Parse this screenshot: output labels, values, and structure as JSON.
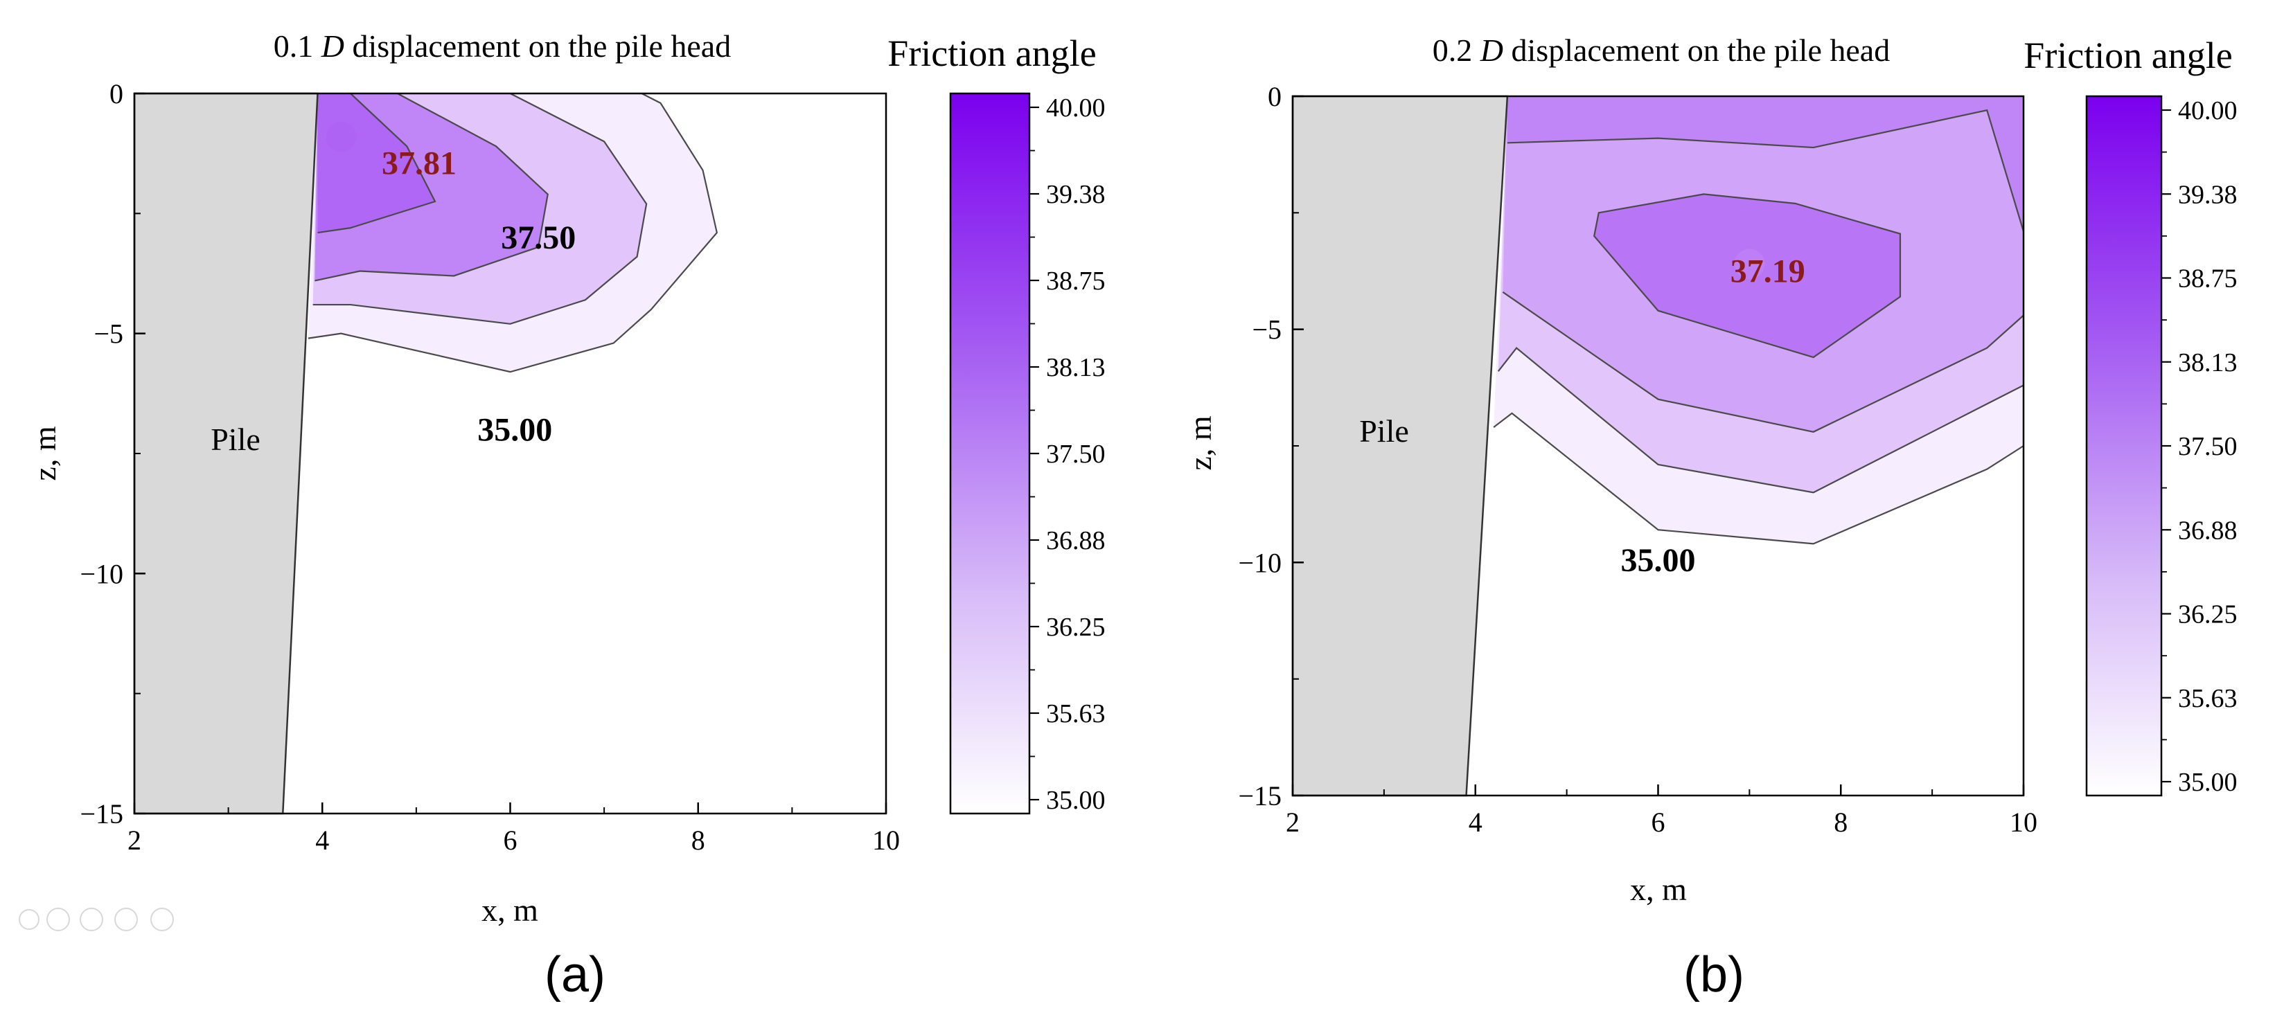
{
  "chart_data": [
    {
      "type": "heatmap",
      "panel": "(a)",
      "title_prefix": "0.1",
      "title_italic": "D",
      "title_suffix": "displacement on the pile head",
      "xlabel": "x, m",
      "ylabel": "z, m",
      "xlim": [
        2,
        10
      ],
      "ylim": [
        -15,
        0
      ],
      "xticks": [
        2,
        4,
        6,
        8,
        10
      ],
      "xtick_labels": [
        "2",
        "4",
        "6",
        "8",
        "10"
      ],
      "yticks": [
        0,
        -5,
        -10,
        -15
      ],
      "ytick_labels": [
        "0",
        "−5",
        "−10",
        "−15"
      ],
      "pile_label": "Pile",
      "pile_top_x": 3.95,
      "pile_bottom_x": 3.58,
      "contours": [
        {
          "level": 35.0,
          "points": [
            [
              3.85,
              -5.1
            ],
            [
              4.2,
              -5.0
            ],
            [
              6.0,
              -5.8
            ],
            [
              7.1,
              -5.2
            ],
            [
              7.5,
              -4.5
            ],
            [
              8.2,
              -2.9
            ],
            [
              8.05,
              -1.6
            ],
            [
              7.6,
              -0.2
            ],
            [
              7.4,
              0
            ]
          ]
        },
        {
          "level": 35.63,
          "points": [
            [
              3.9,
              -4.4
            ],
            [
              4.3,
              -4.4
            ],
            [
              6.0,
              -4.8
            ],
            [
              6.8,
              -4.3
            ],
            [
              7.35,
              -3.4
            ],
            [
              7.45,
              -2.3
            ],
            [
              7.0,
              -1.0
            ],
            [
              6.0,
              0
            ]
          ]
        },
        {
          "level": 36.88,
          "points": [
            [
              3.92,
              -3.9
            ],
            [
              4.4,
              -3.7
            ],
            [
              5.4,
              -3.8
            ],
            [
              6.3,
              -3.2
            ],
            [
              6.4,
              -2.1
            ],
            [
              5.85,
              -1.1
            ],
            [
              4.8,
              0
            ]
          ]
        },
        {
          "level": 37.5,
          "points": [
            [
              3.95,
              -2.9
            ],
            [
              4.3,
              -2.8
            ],
            [
              5.2,
              -2.25
            ],
            [
              4.9,
              -1.1
            ],
            [
              4.3,
              0
            ]
          ]
        }
      ],
      "annotations": [
        {
          "text": "37.81",
          "x": 5.03,
          "y": -1.45,
          "style": "highlight"
        },
        {
          "text": "37.50",
          "x": 6.3,
          "y": -3.0,
          "style": "bold"
        },
        {
          "text": "35.00",
          "x": 6.05,
          "y": -7.0,
          "style": "bold"
        }
      ],
      "peak": {
        "x": 4.2,
        "y": -0.9,
        "value": 37.81
      },
      "colorbar": {
        "title": "Friction angle",
        "min": 35.0,
        "max": 40.0,
        "tick_labels": [
          "40.00",
          "39.38",
          "38.75",
          "38.13",
          "37.50",
          "36.88",
          "36.25",
          "35.63",
          "35.00"
        ],
        "color_min": "#ffffff",
        "color_max": "#7b00ee"
      }
    },
    {
      "type": "heatmap",
      "panel": "(b)",
      "title_prefix": "0.2",
      "title_italic": "D",
      "title_suffix": "displacement on the pile head",
      "xlabel": "x, m",
      "ylabel": "z, m",
      "xlim": [
        2,
        10
      ],
      "ylim": [
        -15,
        0
      ],
      "xticks": [
        2,
        4,
        6,
        8,
        10
      ],
      "xtick_labels": [
        "2",
        "4",
        "6",
        "8",
        "10"
      ],
      "yticks": [
        0,
        -5,
        -10,
        -15
      ],
      "ytick_labels": [
        "0",
        "−5",
        "−10",
        "−15"
      ],
      "pile_label": "Pile",
      "pile_top_x": 4.35,
      "pile_bottom_x": 3.9,
      "contours": [
        {
          "level": 35.0,
          "points": [
            [
              4.2,
              -7.1
            ],
            [
              4.4,
              -6.8
            ],
            [
              6.0,
              -9.3
            ],
            [
              7.7,
              -9.6
            ],
            [
              9.6,
              -8.0
            ],
            [
              10,
              -7.5
            ]
          ]
        },
        {
          "level": 35.63,
          "points": [
            [
              4.25,
              -5.9
            ],
            [
              4.45,
              -5.4
            ],
            [
              6.0,
              -7.9
            ],
            [
              7.7,
              -8.5
            ],
            [
              9.6,
              -6.6
            ],
            [
              10,
              -6.2
            ]
          ]
        },
        {
          "level": 36.25,
          "points": [
            [
              4.3,
              -4.2
            ],
            [
              6.0,
              -6.5
            ],
            [
              7.7,
              -7.2
            ],
            [
              9.6,
              -5.4
            ],
            [
              10,
              -4.7
            ]
          ]
        },
        {
          "level": 36.88,
          "points": [
            [
              4.35,
              -1.0
            ],
            [
              6.0,
              -0.9
            ],
            [
              7.7,
              -1.1
            ],
            [
              9.6,
              -0.3
            ],
            [
              10,
              -2.9
            ]
          ]
        },
        {
          "level": 37.19,
          "closed": true,
          "points": [
            [
              5.35,
              -2.5
            ],
            [
              6.5,
              -2.1
            ],
            [
              7.5,
              -2.3
            ],
            [
              8.65,
              -2.95
            ],
            [
              8.65,
              -4.3
            ],
            [
              7.7,
              -5.6
            ],
            [
              6.0,
              -4.6
            ],
            [
              5.3,
              -3.0
            ]
          ]
        }
      ],
      "annotations": [
        {
          "text": "37.19",
          "x": 7.2,
          "y": -3.75,
          "style": "highlight"
        },
        {
          "text": "35.00",
          "x": 6.0,
          "y": -9.95,
          "style": "bold"
        }
      ],
      "peak": {
        "x": 7.0,
        "y": -3.6,
        "value": 37.19
      },
      "colorbar": {
        "title": "Friction angle",
        "min": 35.0,
        "max": 40.0,
        "tick_labels": [
          "40.00",
          "39.38",
          "38.75",
          "38.13",
          "37.50",
          "36.88",
          "36.25",
          "35.63",
          "35.00"
        ],
        "color_min": "#ffffff",
        "color_max": "#7b00ee"
      }
    }
  ],
  "captions": {
    "a": "(a)",
    "b": "(b)"
  }
}
